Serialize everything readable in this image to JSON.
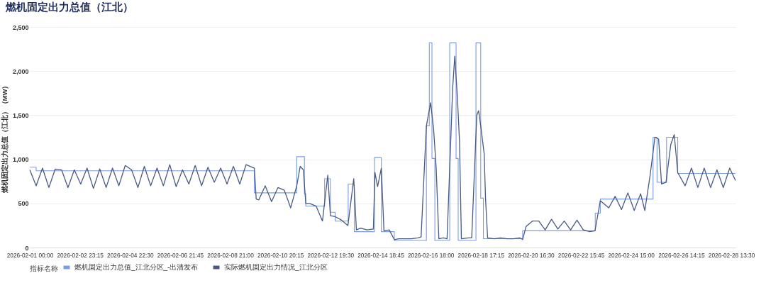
{
  "chart_data": {
    "type": "line",
    "title": "燃机固定出力总值（江北）",
    "ylabel": "燃机固定出力总值（江北）（MW）",
    "legend_title": "指标名称",
    "legend": "bottom",
    "grid": "y",
    "xlim": [
      "2026-02-01T00:00",
      "2026-02-28T17:30"
    ],
    "xticks": [
      {
        "value": "2026-02-01T00:00",
        "label": "2026-02-01 00:00"
      },
      {
        "value": "2026-02-02T23:15",
        "label": "2026-02-02 23:15"
      },
      {
        "value": "2026-02-04T22:30",
        "label": "2026-02-04 22:30"
      },
      {
        "value": "2026-02-06T21:45",
        "label": "2026-02-06 21:45"
      },
      {
        "value": "2026-02-08T21:00",
        "label": "2026-02-08 21:00"
      },
      {
        "value": "2026-02-10T20:15",
        "label": "2026-02-10 20:15"
      },
      {
        "value": "2026-02-12T19:30",
        "label": "2026-02-12 19:30"
      },
      {
        "value": "2026-02-14T18:45",
        "label": "2026-02-14 18:45"
      },
      {
        "value": "2026-02-16T18:00",
        "label": "2026-02-16 18:00"
      },
      {
        "value": "2026-02-18T17:15",
        "label": "2026-02-18 17:15"
      },
      {
        "value": "2026-02-20T16:30",
        "label": "2026-02-20 16:30"
      },
      {
        "value": "2026-02-22T15:45",
        "label": "2026-02-22 15:45"
      },
      {
        "value": "2026-02-24T15:00",
        "label": "2026-02-24 15:00"
      },
      {
        "value": "2026-02-26T14:15",
        "label": "2026-02-26 14:15"
      },
      {
        "value": "2026-02-28T13:30",
        "label": "2026-02-28 13:30"
      }
    ],
    "ylim": [
      0,
      2500
    ],
    "yticks": [
      0,
      500,
      {
        "value": 1000,
        "label": "1,000"
      },
      {
        "value": 1500,
        "label": "1,500"
      },
      {
        "value": 2000,
        "label": "2,000"
      },
      {
        "value": 2500,
        "label": "2,500"
      }
    ],
    "series": [
      {
        "name": "燃机固定出力总值_江北分区_-出清发布",
        "type": "step",
        "color": "#7b9ce6",
        "x": [
          "2026-02-01T00:00",
          "2026-02-01T06:00",
          "2026-02-09T19:45",
          "2026-02-11T11:45",
          "2026-02-11T19:00",
          "2026-02-11T20:15",
          "2026-02-12T14:00",
          "2026-02-12T19:30",
          "2026-02-13T00:00",
          "2026-02-13T12:15",
          "2026-02-13T18:00",
          "2026-02-14T13:00",
          "2026-02-14T19:30",
          "2026-02-15T07:45",
          "2026-02-16T14:00",
          "2026-02-16T16:45",
          "2026-02-16T19:15",
          "2026-02-16T22:00",
          "2026-02-17T12:00",
          "2026-02-17T18:00",
          "2026-02-17T20:00",
          "2026-02-18T12:45",
          "2026-02-18T17:15",
          "2026-02-18T19:45",
          "2026-02-20T08:45",
          "2026-02-23T05:15",
          "2026-02-23T10:00",
          "2026-02-25T11:45",
          "2026-02-25T15:30",
          "2026-02-26T00:30",
          "2026-02-26T11:00",
          "2026-02-28T17:30"
        ],
        "values": [
          910,
          870,
          620,
          1030,
          610,
          470,
          780,
          400,
          300,
          720,
          180,
          1020,
          180,
          80,
          1380,
          2320,
          1010,
          80,
          2320,
          1010,
          80,
          2320,
          560,
          100,
          190,
          390,
          550,
          1250,
          740,
          1250,
          840,
          840
        ]
      },
      {
        "name": "实际燃机固定出力情况_江北分区",
        "color": "#485a84",
        "x": [
          "2026-02-01T00:00",
          "2026-02-01T06:00",
          "2026-02-01T12:00",
          "2026-02-01T18:00",
          "2026-02-02T00:00",
          "2026-02-02T06:00",
          "2026-02-02T12:00",
          "2026-02-02T18:00",
          "2026-02-03T00:00",
          "2026-02-03T06:00",
          "2026-02-03T12:00",
          "2026-02-03T18:00",
          "2026-02-04T00:00",
          "2026-02-04T06:00",
          "2026-02-04T12:00",
          "2026-02-04T18:00",
          "2026-02-05T00:00",
          "2026-02-05T06:00",
          "2026-02-05T12:00",
          "2026-02-05T18:00",
          "2026-02-06T00:00",
          "2026-02-06T06:00",
          "2026-02-06T12:00",
          "2026-02-06T18:00",
          "2026-02-07T00:00",
          "2026-02-07T06:00",
          "2026-02-07T12:00",
          "2026-02-07T18:00",
          "2026-02-08T00:00",
          "2026-02-08T06:00",
          "2026-02-08T12:00",
          "2026-02-08T18:00",
          "2026-02-09T00:00",
          "2026-02-09T06:00",
          "2026-02-09T12:00",
          "2026-02-09T19:45",
          "2026-02-09T21:30",
          "2026-02-10T00:00",
          "2026-02-10T06:00",
          "2026-02-10T12:00",
          "2026-02-10T18:00",
          "2026-02-11T00:00",
          "2026-02-11T06:00",
          "2026-02-11T11:45",
          "2026-02-11T15:00",
          "2026-02-11T18:00",
          "2026-02-11T20:15",
          "2026-02-12T00:00",
          "2026-02-12T06:00",
          "2026-02-12T12:00",
          "2026-02-12T17:00",
          "2026-02-12T19:30",
          "2026-02-13T00:00",
          "2026-02-13T06:00",
          "2026-02-13T12:00",
          "2026-02-13T17:30",
          "2026-02-13T20:00",
          "2026-02-14T00:00",
          "2026-02-14T06:00",
          "2026-02-14T12:00",
          "2026-02-14T13:30",
          "2026-02-14T16:00",
          "2026-02-14T19:30",
          "2026-02-14T22:00",
          "2026-02-15T03:00",
          "2026-02-15T07:45",
          "2026-02-15T12:00",
          "2026-02-15T18:00",
          "2026-02-16T00:00",
          "2026-02-16T06:00",
          "2026-02-16T09:00",
          "2026-02-16T14:00",
          "2026-02-16T18:00",
          "2026-02-16T20:45",
          "2026-02-16T23:15",
          "2026-02-17T01:45",
          "2026-02-17T06:00",
          "2026-02-17T09:30",
          "2026-02-17T12:00",
          "2026-02-17T14:45",
          "2026-02-17T16:45",
          "2026-02-17T19:15",
          "2026-02-17T21:15",
          "2026-02-17T23:00",
          "2026-02-18T06:00",
          "2026-02-18T08:45",
          "2026-02-18T13:30",
          "2026-02-18T15:15",
          "2026-02-18T17:15",
          "2026-02-18T20:30",
          "2026-02-18T21:45",
          "2026-02-18T23:45",
          "2026-02-19T06:00",
          "2026-02-19T12:00",
          "2026-02-19T18:00",
          "2026-02-20T00:00",
          "2026-02-20T06:00",
          "2026-02-20T08:45",
          "2026-02-20T12:00",
          "2026-02-20T18:00",
          "2026-02-21T00:00",
          "2026-02-21T06:00",
          "2026-02-21T12:00",
          "2026-02-21T18:00",
          "2026-02-22T00:00",
          "2026-02-22T06:00",
          "2026-02-22T12:00",
          "2026-02-22T18:00",
          "2026-02-23T00:00",
          "2026-02-23T05:00",
          "2026-02-23T10:00",
          "2026-02-23T18:00",
          "2026-02-24T00:00",
          "2026-02-24T06:00",
          "2026-02-24T12:00",
          "2026-02-24T18:00",
          "2026-02-25T00:00",
          "2026-02-25T04:00",
          "2026-02-25T09:00",
          "2026-02-25T13:30",
          "2026-02-25T17:00",
          "2026-02-25T19:45",
          "2026-02-26T00:00",
          "2026-02-26T04:30",
          "2026-02-26T07:45",
          "2026-02-26T11:00",
          "2026-02-26T18:00",
          "2026-02-27T00:00",
          "2026-02-27T06:00",
          "2026-02-27T12:00",
          "2026-02-27T18:00",
          "2026-02-28T00:00",
          "2026-02-28T06:00",
          "2026-02-28T12:00",
          "2026-02-28T17:30"
        ],
        "values": [
          880,
          700,
          900,
          680,
          890,
          880,
          680,
          880,
          720,
          900,
          670,
          890,
          680,
          900,
          700,
          930,
          880,
          680,
          920,
          700,
          900,
          700,
          940,
          690,
          880,
          720,
          930,
          700,
          910,
          740,
          900,
          720,
          920,
          720,
          940,
          900,
          550,
          540,
          700,
          520,
          680,
          650,
          450,
          700,
          920,
          880,
          500,
          500,
          470,
          300,
          820,
          360,
          350,
          310,
          250,
          780,
          200,
          220,
          200,
          210,
          850,
          690,
          900,
          190,
          200,
          90,
          100,
          100,
          100,
          110,
          120,
          1380,
          1640,
          1350,
          900,
          100,
          110,
          100,
          900,
          1800,
          2170,
          1700,
          1200,
          100,
          110,
          110,
          1500,
          1550,
          1380,
          1060,
          560,
          110,
          100,
          110,
          100,
          100,
          110,
          90,
          240,
          300,
          300,
          200,
          320,
          210,
          300,
          200,
          310,
          200,
          180,
          190,
          530,
          450,
          580,
          430,
          620,
          420,
          610,
          420,
          820,
          1250,
          1230,
          720,
          740,
          1170,
          1280,
          850,
          700,
          900,
          680,
          900,
          680,
          880,
          680,
          900,
          760
        ]
      }
    ]
  }
}
